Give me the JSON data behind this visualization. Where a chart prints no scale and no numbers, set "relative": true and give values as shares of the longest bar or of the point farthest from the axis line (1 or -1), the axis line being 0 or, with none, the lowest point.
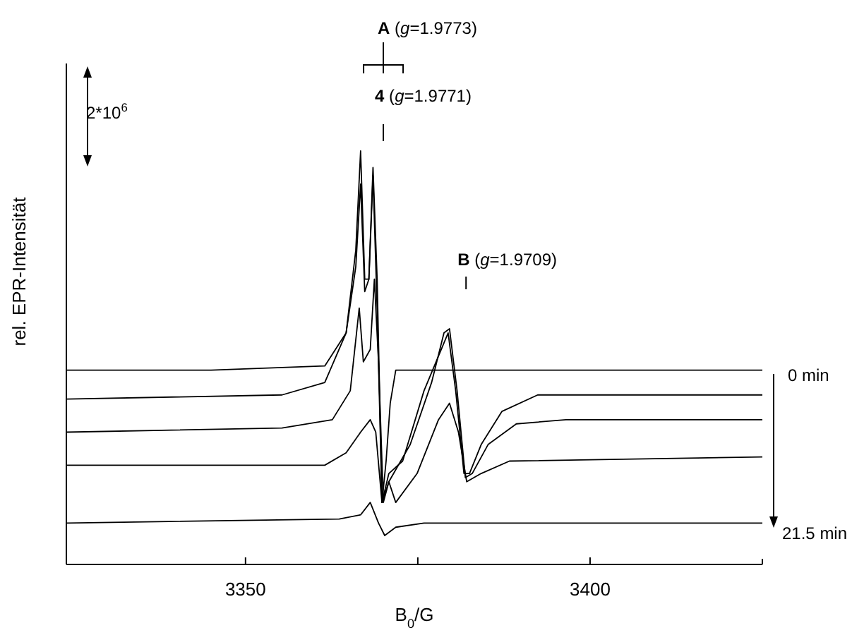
{
  "chart_data": {
    "type": "line",
    "relative": true,
    "xlabel": "B$_{0}$/G",
    "ylabel": "rel. EPR-Intensität",
    "xlim": [
      3324,
      3425
    ],
    "xticks": [
      3350,
      {
        "value": 3375,
        "label": null
      },
      3400
    ],
    "tick_labels": "x",
    "line_style": "solid",
    "marker": "none",
    "annotations": [
      "A (g=1.9773)",
      "4 (g=1.9771)",
      "B (g=1.9709)",
      "0 min",
      "21.5 min",
      "2*10$^{6}$"
    ],
    "series": [
      {
        "color": "#000000",
        "x": [
          3324,
          3345,
          3361.5,
          3364.6,
          3366,
          3366.7,
          3367.3,
          3367.9,
          3368.5,
          3369.1,
          3369.8,
          3370.4,
          3371,
          3371.8,
          3425
        ],
        "values": [
          0.47,
          0.47,
          0.48,
          0.56,
          0.76,
          1,
          0.69,
          0.69,
          0.96,
          0.69,
          0.15,
          0.25,
          0.39,
          0.47,
          0.47
        ]
      },
      {
        "color": "#000000",
        "x": [
          3324,
          3355.3,
          3361.5,
          3364.6,
          3366,
          3366.7,
          3367.3,
          3367.9,
          3368.5,
          3369.1,
          3369.8,
          3370.8,
          3372.8,
          3375.9,
          3378.4,
          3379.4,
          3380.5,
          3381.7,
          3382.5,
          3384.2,
          3387.2,
          3392.4,
          3425
        ],
        "values": [
          0.4,
          0.41,
          0.44,
          0.56,
          0.72,
          0.92,
          0.66,
          0.69,
          0.94,
          0.62,
          0.15,
          0.22,
          0.25,
          0.42,
          0.52,
          0.56,
          0.42,
          0.22,
          0.22,
          0.29,
          0.37,
          0.41,
          0.41
        ]
      },
      {
        "color": "#000000",
        "x": [
          3324,
          3355.3,
          3362.6,
          3365.2,
          3366.5,
          3367.1,
          3368.1,
          3368.7,
          3369.3,
          3370,
          3370.8,
          3373.9,
          3377,
          3378.8,
          3379.6,
          3380.7,
          3381.9,
          3382.9,
          3385.2,
          3389.3,
          3396.5,
          3425
        ],
        "values": [
          0.32,
          0.33,
          0.35,
          0.42,
          0.62,
          0.49,
          0.52,
          0.69,
          0.49,
          0.15,
          0.2,
          0.29,
          0.44,
          0.56,
          0.57,
          0.42,
          0.21,
          0.22,
          0.29,
          0.34,
          0.35,
          0.35
        ]
      },
      {
        "color": "#000000",
        "x": [
          3324,
          3361.5,
          3364.6,
          3366.7,
          3368.1,
          3368.9,
          3369.8,
          3370.8,
          3371.8,
          3374.9,
          3378,
          3379.6,
          3380.9,
          3382.1,
          3384.2,
          3388.3,
          3425
        ],
        "values": [
          0.24,
          0.24,
          0.27,
          0.32,
          0.35,
          0.32,
          0.15,
          0.2,
          0.15,
          0.22,
          0.35,
          0.39,
          0.32,
          0.2,
          0.22,
          0.25,
          0.26
        ]
      },
      {
        "color": "#000000",
        "x": [
          3324,
          3363.6,
          3366.7,
          3368.1,
          3369.3,
          3370.2,
          3371.8,
          3375.9,
          3425
        ],
        "values": [
          0.1,
          0.11,
          0.12,
          0.15,
          0.1,
          0.07,
          0.09,
          0.1,
          0.1
        ]
      }
    ]
  }
}
